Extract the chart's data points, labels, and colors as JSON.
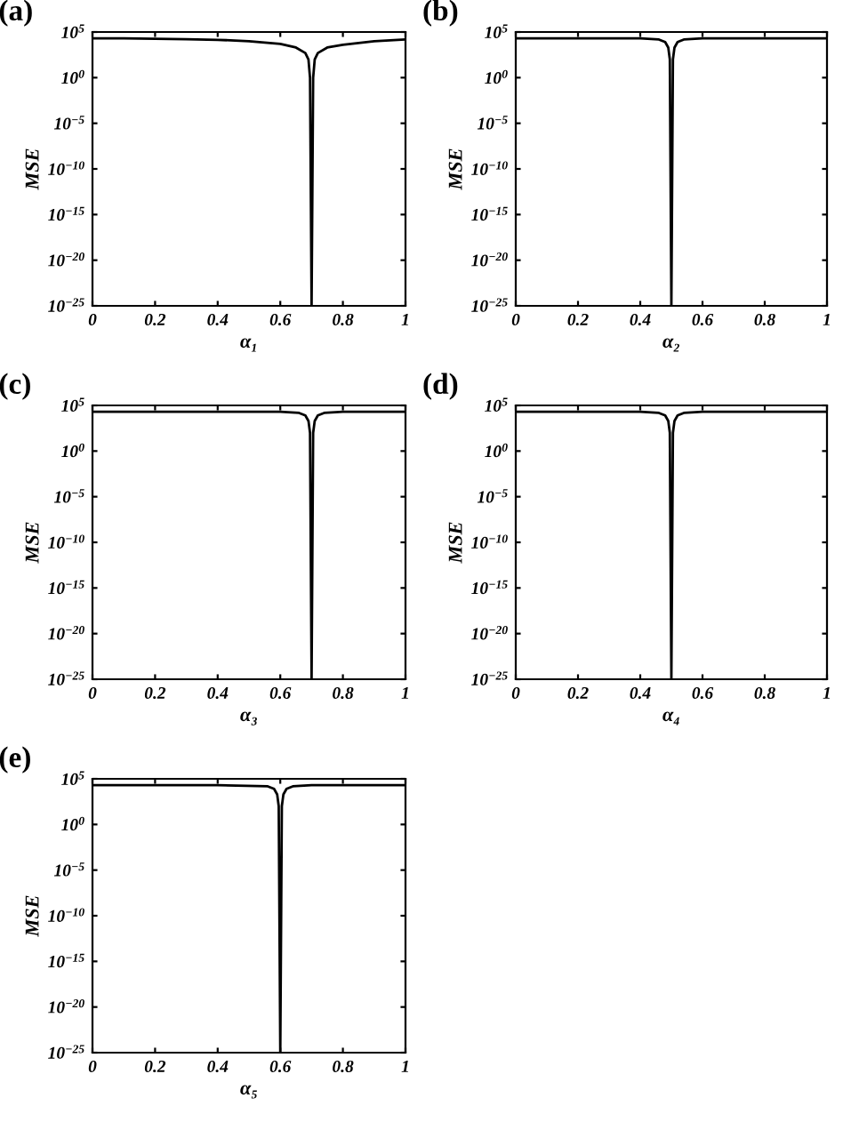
{
  "chart_data": [
    {
      "type": "line",
      "title": "(a)",
      "xlabel": "α₁",
      "ylabel": "MSE",
      "log": "y",
      "grid": false,
      "legend": false,
      "marker": "none",
      "line_style": "solid",
      "xlim": [
        0,
        1
      ],
      "ylim": [
        1e-25,
        100000.0
      ],
      "xticks": [
        0,
        0.2,
        0.4,
        0.6,
        0.8,
        1
      ],
      "yticks": [
        {
          "value": 100000.0,
          "label": "10$^{5}$"
        },
        {
          "value": 1,
          "label": "10$^{0}$"
        },
        {
          "value": 1e-05,
          "label": "10$^{−5}$"
        },
        {
          "value": 1e-10,
          "label": "10$^{−10}$"
        },
        {
          "value": 1e-15,
          "label": "10$^{−15}$"
        },
        {
          "value": 1e-20,
          "label": "10$^{−20}$"
        },
        {
          "value": 1e-25,
          "label": "10$^{−25}$"
        }
      ],
      "series": [
        {
          "color": "#000000",
          "x": [
            0,
            0.1,
            0.2,
            0.3,
            0.4,
            0.5,
            0.6,
            0.65,
            0.68,
            0.69,
            0.695,
            0.7,
            0.705,
            0.71,
            0.72,
            0.75,
            0.8,
            0.9,
            1
          ],
          "values": [
            20000.0,
            20000.0,
            18000.0,
            16000.0,
            14000.0,
            10000.0,
            5000.0,
            2000.0,
            500.0,
            100.0,
            1,
            1e-25,
            1,
            100.0,
            500.0,
            2000.0,
            4000.0,
            10000.0,
            15000.0
          ]
        }
      ]
    },
    {
      "type": "line",
      "title": "(b)",
      "xlabel": "α₂",
      "ylabel": "MSE",
      "log": "y",
      "grid": false,
      "legend": false,
      "marker": "none",
      "line_style": "solid",
      "xlim": [
        0,
        1
      ],
      "ylim": [
        1e-25,
        100000.0
      ],
      "xticks": [
        0,
        0.2,
        0.4,
        0.6,
        0.8,
        1
      ],
      "yticks": [
        {
          "value": 100000.0,
          "label": "10$^{5}$"
        },
        {
          "value": 1,
          "label": "10$^{0}$"
        },
        {
          "value": 1e-05,
          "label": "10$^{−5}$"
        },
        {
          "value": 1e-10,
          "label": "10$^{−10}$"
        },
        {
          "value": 1e-15,
          "label": "10$^{−15}$"
        },
        {
          "value": 1e-20,
          "label": "10$^{−20}$"
        },
        {
          "value": 1e-25,
          "label": "10$^{−25}$"
        }
      ],
      "series": [
        {
          "color": "#000000",
          "x": [
            0,
            0.2,
            0.4,
            0.46,
            0.48,
            0.49,
            0.495,
            0.5,
            0.505,
            0.51,
            0.52,
            0.54,
            0.6,
            0.8,
            1
          ],
          "values": [
            20000.0,
            20000.0,
            20000.0,
            15000.0,
            8000.0,
            2000.0,
            100.0,
            1e-25,
            100.0,
            2000.0,
            8000.0,
            15000.0,
            20000.0,
            20000.0,
            20000.0
          ]
        }
      ]
    },
    {
      "type": "line",
      "title": "(c)",
      "xlabel": "α₃",
      "ylabel": "MSE",
      "log": "y",
      "grid": false,
      "legend": false,
      "marker": "none",
      "line_style": "solid",
      "xlim": [
        0,
        1
      ],
      "ylim": [
        1e-25,
        100000.0
      ],
      "xticks": [
        0,
        0.2,
        0.4,
        0.6,
        0.8,
        1
      ],
      "yticks": [
        {
          "value": 100000.0,
          "label": "10$^{5}$"
        },
        {
          "value": 1,
          "label": "10$^{0}$"
        },
        {
          "value": 1e-05,
          "label": "10$^{−5}$"
        },
        {
          "value": 1e-10,
          "label": "10$^{−10}$"
        },
        {
          "value": 1e-15,
          "label": "10$^{−15}$"
        },
        {
          "value": 1e-20,
          "label": "10$^{−20}$"
        },
        {
          "value": 1e-25,
          "label": "10$^{−25}$"
        }
      ],
      "series": [
        {
          "color": "#000000",
          "x": [
            0,
            0.2,
            0.4,
            0.6,
            0.66,
            0.68,
            0.69,
            0.695,
            0.7,
            0.705,
            0.71,
            0.72,
            0.74,
            0.8,
            1
          ],
          "values": [
            20000.0,
            20000.0,
            20000.0,
            20000.0,
            15000.0,
            8000.0,
            2000.0,
            100.0,
            1e-25,
            100.0,
            2000.0,
            8000.0,
            15000.0,
            20000.0,
            20000.0
          ]
        }
      ]
    },
    {
      "type": "line",
      "title": "(d)",
      "xlabel": "α₄",
      "ylabel": "MSE",
      "log": "y",
      "grid": false,
      "legend": false,
      "marker": "none",
      "line_style": "solid",
      "xlim": [
        0,
        1
      ],
      "ylim": [
        1e-25,
        100000.0
      ],
      "xticks": [
        0,
        0.2,
        0.4,
        0.6,
        0.8,
        1
      ],
      "yticks": [
        {
          "value": 100000.0,
          "label": "10$^{5}$"
        },
        {
          "value": 1,
          "label": "10$^{0}$"
        },
        {
          "value": 1e-05,
          "label": "10$^{−5}$"
        },
        {
          "value": 1e-10,
          "label": "10$^{−10}$"
        },
        {
          "value": 1e-15,
          "label": "10$^{−15}$"
        },
        {
          "value": 1e-20,
          "label": "10$^{−20}$"
        },
        {
          "value": 1e-25,
          "label": "10$^{−25}$"
        }
      ],
      "series": [
        {
          "color": "#000000",
          "x": [
            0,
            0.2,
            0.4,
            0.46,
            0.48,
            0.49,
            0.495,
            0.5,
            0.505,
            0.51,
            0.52,
            0.54,
            0.6,
            0.8,
            1
          ],
          "values": [
            20000.0,
            20000.0,
            20000.0,
            15000.0,
            8000.0,
            2000.0,
            100.0,
            1e-25,
            100.0,
            2000.0,
            8000.0,
            15000.0,
            20000.0,
            20000.0,
            20000.0
          ]
        }
      ]
    },
    {
      "type": "line",
      "title": "(e)",
      "xlabel": "α₅",
      "ylabel": "MSE",
      "log": "y",
      "grid": false,
      "legend": false,
      "marker": "none",
      "line_style": "solid",
      "xlim": [
        0,
        1
      ],
      "ylim": [
        1e-25,
        100000.0
      ],
      "xticks": [
        0,
        0.2,
        0.4,
        0.6,
        0.8,
        1
      ],
      "yticks": [
        {
          "value": 100000.0,
          "label": "10$^{5}$"
        },
        {
          "value": 1,
          "label": "10$^{0}$"
        },
        {
          "value": 1e-05,
          "label": "10$^{−5}$"
        },
        {
          "value": 1e-10,
          "label": "10$^{−10}$"
        },
        {
          "value": 1e-15,
          "label": "10$^{−15}$"
        },
        {
          "value": 1e-20,
          "label": "10$^{−20}$"
        },
        {
          "value": 1e-25,
          "label": "10$^{−25}$"
        }
      ],
      "series": [
        {
          "color": "#000000",
          "x": [
            0,
            0.2,
            0.4,
            0.56,
            0.58,
            0.59,
            0.595,
            0.6,
            0.605,
            0.61,
            0.62,
            0.64,
            0.7,
            0.8,
            1
          ],
          "values": [
            20000.0,
            20000.0,
            20000.0,
            15000.0,
            8000.0,
            2000.0,
            100.0,
            1e-25,
            100.0,
            2000.0,
            8000.0,
            15000.0,
            20000.0,
            20000.0,
            20000.0
          ]
        }
      ]
    }
  ]
}
